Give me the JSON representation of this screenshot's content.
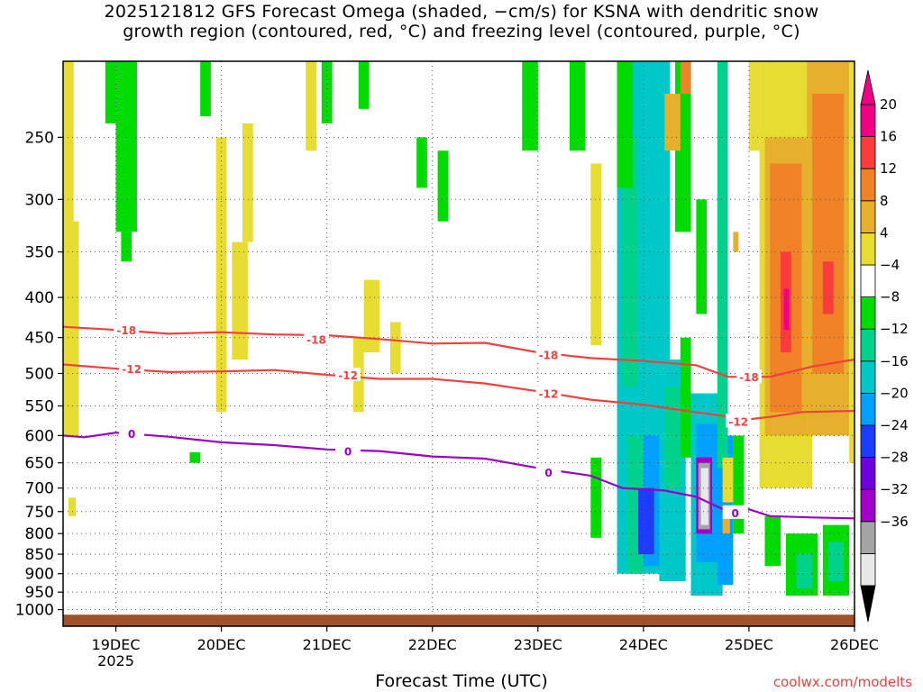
{
  "header": {
    "title_line1": "2025121812 GFS Forecast Omega (shaded, −cm/s) for KSNA with dendritic snow",
    "title_line2": "growth region (contoured, red, °C) and freezing level (contoured, purple, °C)"
  },
  "footer": {
    "xlabel": "Forecast Time (UTC)",
    "credit": "coolwx.com/modelts"
  },
  "chart_data": {
    "type": "heatmap",
    "title": "2025121812 GFS Forecast Omega (shaded, −cm/s) for KSNA with dendritic snow growth region (contoured, red, °C) and freezing level (contoured, purple, °C)",
    "xlabel": "Forecast Time (UTC)",
    "ylabel": "",
    "y_scale": "log-pressure",
    "y_range_hpa": [
      1050,
      200
    ],
    "x_range_days": [
      18.5,
      26.0
    ],
    "x_ticks": [
      {
        "day": 19,
        "label": "19DEC",
        "sub": "2025"
      },
      {
        "day": 20,
        "label": "20DEC",
        "sub": ""
      },
      {
        "day": 21,
        "label": "21DEC",
        "sub": ""
      },
      {
        "day": 22,
        "label": "22DEC",
        "sub": ""
      },
      {
        "day": 23,
        "label": "23DEC",
        "sub": ""
      },
      {
        "day": 24,
        "label": "24DEC",
        "sub": ""
      },
      {
        "day": 25,
        "label": "25DEC",
        "sub": ""
      },
      {
        "day": 26,
        "label": "26DEC",
        "sub": ""
      }
    ],
    "y_ticks": [
      250,
      300,
      350,
      400,
      450,
      500,
      550,
      600,
      650,
      700,
      750,
      800,
      850,
      900,
      950,
      1000
    ],
    "grid": true,
    "ground_color": "#a0522d",
    "colorbar": {
      "labels": [
        "20",
        "16",
        "12",
        "8",
        "4",
        "−4",
        "−8",
        "−12",
        "−16",
        "−20",
        "−24",
        "−28",
        "−32",
        "−36"
      ],
      "colors": [
        "#e8e8e8",
        "#a4a4a4",
        "#a000c8",
        "#6e00dc",
        "#1e3cff",
        "#00a0ff",
        "#00c8c8",
        "#00d28c",
        "#00dc00",
        "#ffffff",
        "#e6dc32",
        "#e6af2d",
        "#f08228",
        "#fa3c3c",
        "#f00082"
      ],
      "bottom_arrow": "#000000",
      "top_arrow": "#f00082"
    },
    "contours": [
      {
        "level": "-18",
        "color": "#f04040",
        "points": [
          [
            18.5,
            436
          ],
          [
            19.0,
            440
          ],
          [
            19.5,
            445
          ],
          [
            20.0,
            443
          ],
          [
            20.5,
            446
          ],
          [
            21.0,
            447
          ],
          [
            21.5,
            452
          ],
          [
            22.0,
            458
          ],
          [
            22.5,
            457
          ],
          [
            23.0,
            470
          ],
          [
            23.5,
            478
          ],
          [
            24.0,
            482
          ],
          [
            24.5,
            488
          ],
          [
            24.8,
            505
          ],
          [
            25.2,
            505
          ],
          [
            25.6,
            490
          ],
          [
            26.0,
            480
          ]
        ],
        "labels": [
          [
            19.1,
            440
          ],
          [
            20.9,
            452
          ],
          [
            23.1,
            473
          ],
          [
            25.0,
            505
          ]
        ]
      },
      {
        "level": "-12",
        "color": "#f04040",
        "points": [
          [
            18.5,
            487
          ],
          [
            19.0,
            493
          ],
          [
            19.5,
            498
          ],
          [
            20.0,
            497
          ],
          [
            20.5,
            495
          ],
          [
            21.0,
            502
          ],
          [
            21.5,
            508
          ],
          [
            22.0,
            508
          ],
          [
            22.5,
            515
          ],
          [
            23.0,
            527
          ],
          [
            23.5,
            540
          ],
          [
            24.0,
            548
          ],
          [
            24.4,
            558
          ],
          [
            24.7,
            565
          ],
          [
            25.0,
            572
          ],
          [
            25.2,
            568
          ],
          [
            25.5,
            560
          ],
          [
            26.0,
            558
          ]
        ],
        "labels": [
          [
            19.15,
            493
          ],
          [
            21.2,
            502
          ],
          [
            23.1,
            530
          ],
          [
            24.9,
            575
          ]
        ]
      },
      {
        "level": "0",
        "color": "#9a00c0",
        "points": [
          [
            18.5,
            600
          ],
          [
            18.7,
            603
          ],
          [
            19.0,
            595
          ],
          [
            19.5,
            602
          ],
          [
            20.0,
            612
          ],
          [
            20.5,
            617
          ],
          [
            21.0,
            625
          ],
          [
            21.5,
            628
          ],
          [
            22.0,
            638
          ],
          [
            22.5,
            642
          ],
          [
            23.0,
            660
          ],
          [
            23.5,
            675
          ],
          [
            23.8,
            700
          ],
          [
            24.2,
            705
          ],
          [
            24.5,
            718
          ],
          [
            24.8,
            750
          ],
          [
            25.0,
            745
          ],
          [
            25.2,
            760
          ],
          [
            25.6,
            763
          ],
          [
            26.0,
            765
          ]
        ],
        "labels": [
          [
            19.15,
            596
          ],
          [
            21.2,
            628
          ],
          [
            23.1,
            668
          ],
          [
            24.87,
            752
          ]
        ]
      }
    ]
  }
}
